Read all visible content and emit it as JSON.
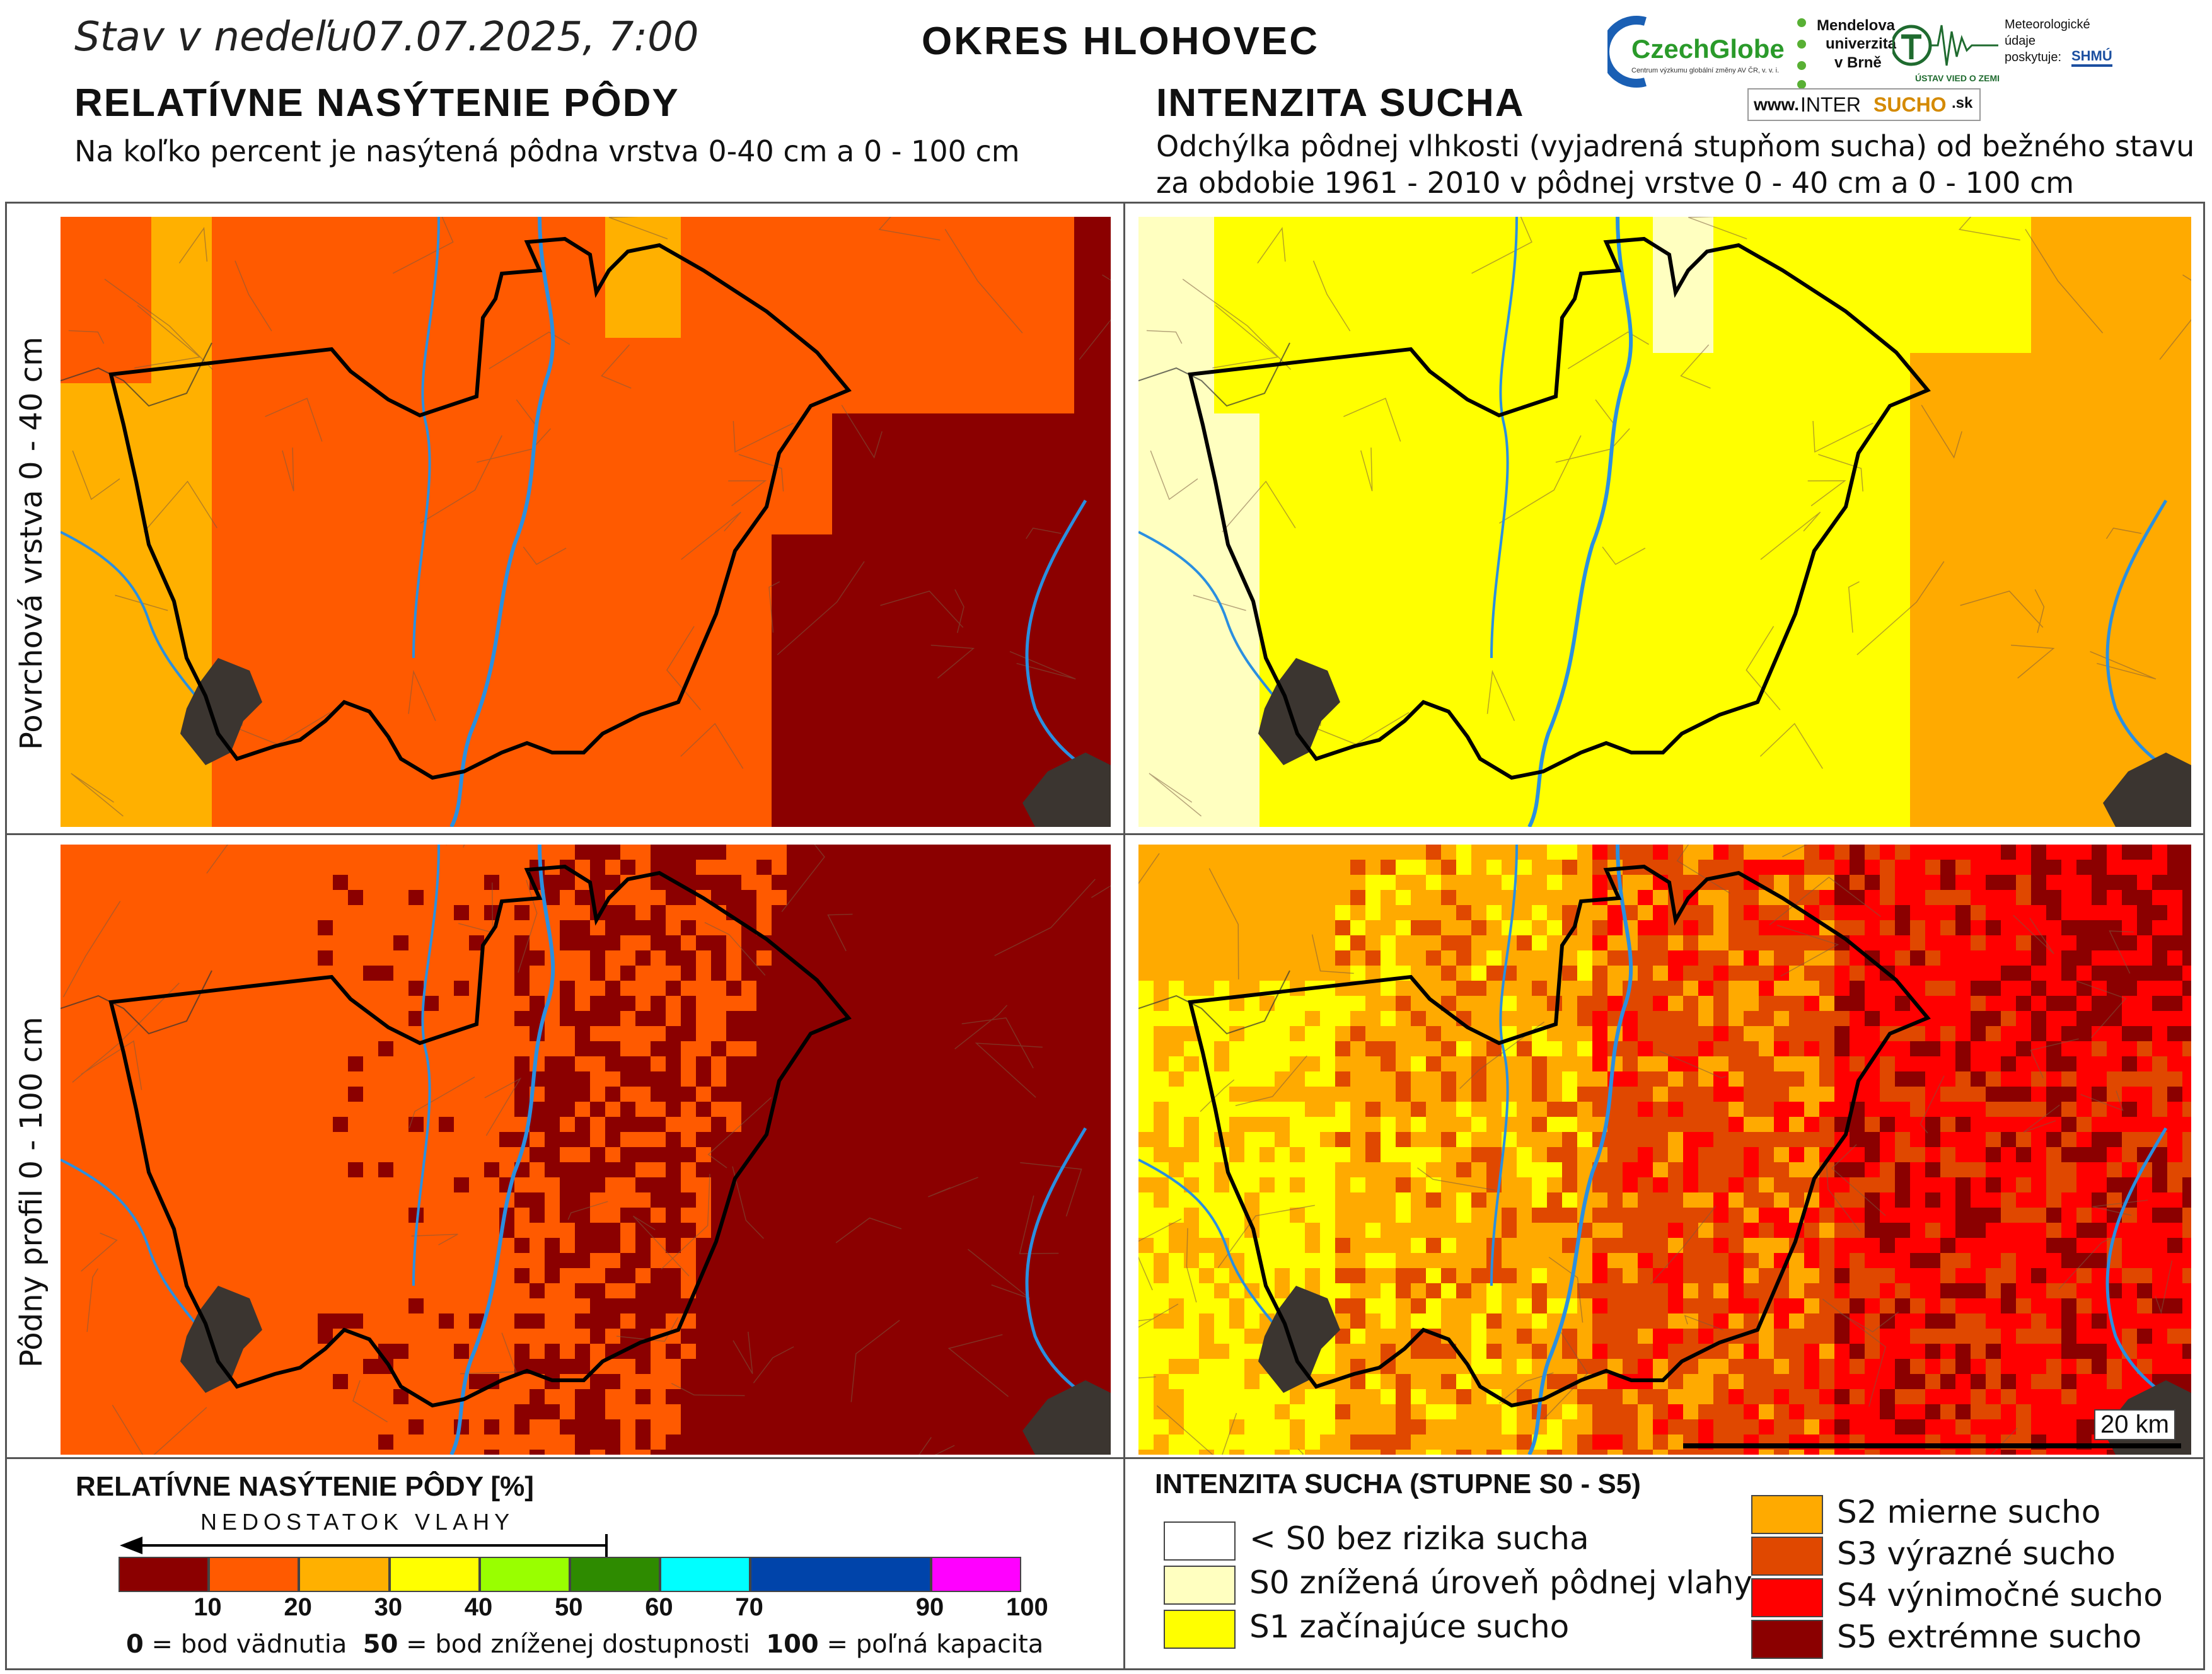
{
  "header": {
    "date_prefix": "Stav v nedeľu",
    "date_value": "07.07.2025, 7:00",
    "district": "OKRES  HLOHOVEC"
  },
  "left_section": {
    "title": "RELATÍVNE NASÝTENIE PÔDY",
    "subtitle": "Na koľko percent je nasýtená pôdna vrstva 0-40 cm a 0 - 100 cm"
  },
  "right_section": {
    "title": "INTENZITA SUCHA",
    "subtitle_line1": "Odchýlka pôdnej vlhkosti (vyjadrená stupňom sucha) od bežného stavu",
    "subtitle_line2": "za obdobie 1961 - 2010 v pôdnej vrstve 0 - 40 cm a 0 - 100 cm"
  },
  "logos": {
    "czechglobe": "CzechGlobe",
    "czechglobe_sub": "Centrum výzkumu globální změny AV ČR, v. v. i.",
    "mendelu_1": "Mendelova",
    "mendelu_2": "univerzita",
    "mendelu_3": "v Brně",
    "ustav": "ÚSTAV VIED O ZEMI",
    "meteo_1": "Meteorologické",
    "meteo_2": "údaje",
    "meteo_3": "poskytuje:",
    "shmu": "SHMÚ",
    "intersucho_prefix": "www.",
    "intersucho_a": "INTER",
    "intersucho_b": "SUCHO",
    "intersucho_c": ".sk"
  },
  "row_labels": {
    "top": "Povrchová vrstva 0 - 40 cm",
    "bottom": "Pôdny profil 0 - 100 cm"
  },
  "scale_bar": "20 km",
  "legend_saturation": {
    "title": "RELATÍVNE NASÝTENIE PÔDY [%]",
    "arrow_label": "NEDOSTATOK VLAHY",
    "bins": [
      {
        "from": 0,
        "to": 10,
        "color": "#8b0000"
      },
      {
        "from": 10,
        "to": 20,
        "color": "#ff5a00"
      },
      {
        "from": 20,
        "to": 30,
        "color": "#ffb000"
      },
      {
        "from": 30,
        "to": 40,
        "color": "#ffff00"
      },
      {
        "from": 40,
        "to": 50,
        "color": "#99ff00"
      },
      {
        "from": 50,
        "to": 60,
        "color": "#2e8b00"
      },
      {
        "from": 60,
        "to": 70,
        "color": "#00ffff"
      },
      {
        "from": 70,
        "to": 90,
        "color": "#0044aa"
      },
      {
        "from": 90,
        "to": 100,
        "color": "#ff00ff"
      }
    ],
    "ticks": [
      "10",
      "20",
      "30",
      "40",
      "50",
      "60",
      "70",
      "90",
      "100"
    ],
    "note_0": "0",
    "note_0_text": " = bod vädnutia",
    "note_50": "50",
    "note_50_text": " = bod zníženej dostupnosti",
    "note_100": "100",
    "note_100_text": " = poľná kapacita"
  },
  "legend_drought": {
    "title": "INTENZITA SUCHA (STUPNE S0 - S5)",
    "classes": [
      {
        "label": "< S0 bez rizika sucha",
        "color": "#ffffff"
      },
      {
        "label": "S0 znížená úroveň pôdnej vlahy",
        "color": "#ffffc0"
      },
      {
        "label": "S1 začínajúce sucho",
        "color": "#ffff00"
      },
      {
        "label": "S2 mierne sucho",
        "color": "#ffaa00"
      },
      {
        "label": "S3 výrazné sucho",
        "color": "#e04800"
      },
      {
        "label": "S4 výnimočné sucho",
        "color": "#ff0000"
      },
      {
        "label": "S5 extrémne sucho",
        "color": "#8b0000"
      }
    ]
  },
  "colors": {
    "sat_red": "#8b0000",
    "sat_orange": "#ff5a00",
    "sat_amber": "#ffb000",
    "s0": "#ffffc0",
    "s1": "#ffff00",
    "s2": "#ffaa00",
    "s3": "#e04800",
    "s4": "#ff0000",
    "s5": "#8b0000",
    "river": "#2a8fe0",
    "urban": "#3b3530",
    "border": "#000000"
  }
}
